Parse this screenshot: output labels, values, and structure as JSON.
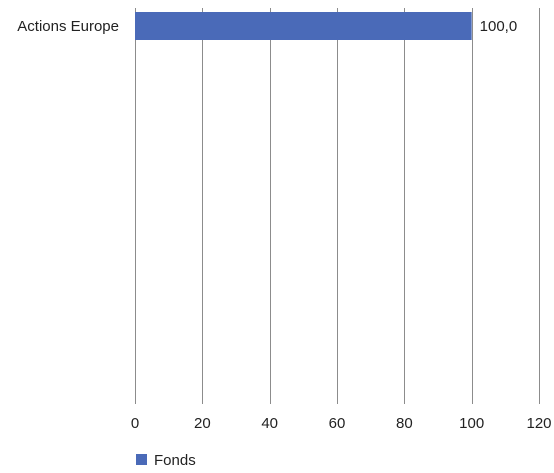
{
  "chart_data": {
    "type": "bar",
    "orientation": "horizontal",
    "title": "",
    "xlabel": "",
    "ylabel": "",
    "categories": [
      "Actions Europe"
    ],
    "series": [
      {
        "name": "Fonds",
        "values": [
          100.0
        ],
        "value_labels": [
          "100,0"
        ],
        "color": "#4a6ab8"
      }
    ],
    "xlim": [
      0,
      120
    ],
    "x_ticks": [
      0,
      20,
      40,
      60,
      80,
      100,
      120
    ],
    "x_tick_labels": [
      "0",
      "20",
      "40",
      "60",
      "80",
      "100",
      "120"
    ],
    "grid": "vertical",
    "legend_position": "bottom-left",
    "colors": {
      "bar": "#4a6ab8",
      "grid": "#8c8c8c",
      "text": "#222222"
    }
  }
}
